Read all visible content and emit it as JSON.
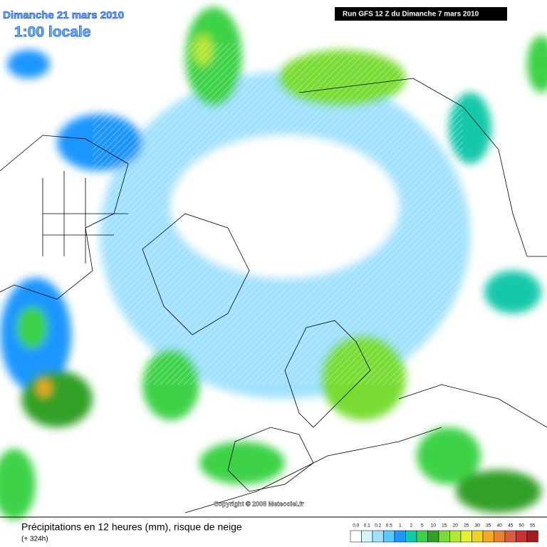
{
  "header": {
    "date": "Dimanche 21 mars 2010",
    "time": "1:00 locale",
    "run": "Run GFS 12 Z du Dimanche 7 mars 2010"
  },
  "copyright": "Copyright © 2008 Meteociel.fr",
  "footer": {
    "title": "Précipitations en 12 heures (mm), risque de neige",
    "subtitle": "(+ 324h)"
  },
  "legend": {
    "labels": [
      "0.0",
      "0.1",
      "0.2",
      "0.5",
      "1",
      "2",
      "5",
      "10",
      "15",
      "20",
      "25",
      "30",
      "35",
      "40",
      "45",
      "50",
      "55"
    ],
    "colors": [
      "#ffffff",
      "#d2f5ff",
      "#a0e1ff",
      "#5ac8ff",
      "#1e96ff",
      "#14c8aa",
      "#3cd246",
      "#32a028",
      "#78dc32",
      "#b4e632",
      "#e6f032",
      "#f0d228",
      "#f0aa28",
      "#e68232",
      "#dc5a3c",
      "#c83232",
      "#a01e1e"
    ]
  }
}
